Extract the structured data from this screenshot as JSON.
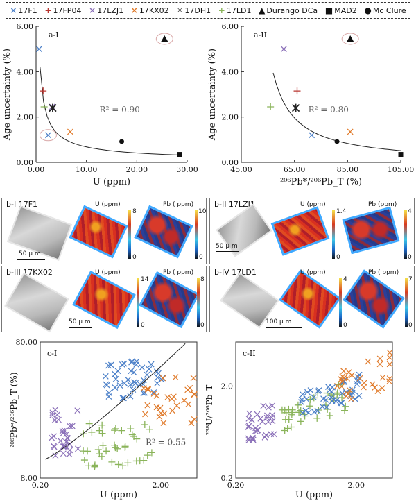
{
  "legend": [
    {
      "marker": "×",
      "label": "17F1",
      "color": "#4a7fc8"
    },
    {
      "marker": "+",
      "label": "17FP04",
      "color": "#b8352f"
    },
    {
      "marker": "×",
      "label": "17LZJ1",
      "color": "#8a6fb8"
    },
    {
      "marker": "×",
      "label": "17KX02",
      "color": "#e07a2a"
    },
    {
      "marker": "✳",
      "label": "17DH1",
      "color": "#222222"
    },
    {
      "marker": "+",
      "label": "17LD1",
      "color": "#8ab45a"
    },
    {
      "marker": "▲",
      "label": "Durango DCa",
      "color": "#111111"
    },
    {
      "marker": "■",
      "label": "MAD2",
      "color": "#111111"
    },
    {
      "marker": "●",
      "label": "Mc Clure",
      "color": "#111111"
    }
  ],
  "panels_b": [
    {
      "label": "b-I   17F1",
      "scale": "50 μ m",
      "u_max": "8",
      "u_min": "0",
      "pb_max": "10",
      "pb_min": "0",
      "u_title": "U (ppm)",
      "pb_title": "Pb ( ppm)"
    },
    {
      "label": "b-II   17LZJ1",
      "scale": "50 μ m",
      "u_max": "1.4",
      "u_min": "0",
      "pb_max": "4",
      "pb_min": "0",
      "u_title": "U (ppm)",
      "pb_title": "Pb (ppm)"
    },
    {
      "label": "b-III   17KX02",
      "scale": "50 μ m",
      "u_max": "14",
      "u_min": "0",
      "pb_max": "8",
      "pb_min": "0",
      "u_title": "U (ppm)",
      "pb_title": "Pb ( ppm)"
    },
    {
      "label": "b-IV   17LD1",
      "scale": "100 μ m",
      "u_max": "4",
      "u_min": "0",
      "pb_max": "7",
      "pb_min": "0",
      "u_title": "U (ppm)",
      "pb_title": "Pb ( ppm)"
    }
  ],
  "chart_data": [
    {
      "type": "scatter",
      "panel": "a-I",
      "xlabel": "U (ppm)",
      "ylabel": "Age uncertainty (%)",
      "xlim": [
        0,
        30
      ],
      "ylim": [
        0,
        6
      ],
      "xticks": [
        "0.00",
        "10.00",
        "20.00",
        "30.00"
      ],
      "yticks": [
        "0.00",
        "2.00",
        "4.00",
        "6.00"
      ],
      "annotation": "R² = 0.90",
      "points": [
        {
          "s": "17F1",
          "x": 0.6,
          "y": 5.0
        },
        {
          "s": "17F1",
          "x": 2.4,
          "y": 1.2
        },
        {
          "s": "17FP04",
          "x": 1.4,
          "y": 3.15
        },
        {
          "s": "17LD1",
          "x": 1.6,
          "y": 2.45
        },
        {
          "s": "17LZJ1",
          "x": 3.2,
          "y": 2.45
        },
        {
          "s": "17DH1",
          "x": 3.3,
          "y": 2.4
        },
        {
          "s": "17KX02",
          "x": 6.8,
          "y": 1.35
        },
        {
          "s": "Mc Clure",
          "x": 17,
          "y": 0.92
        },
        {
          "s": "MAD2",
          "x": 28.5,
          "y": 0.35
        },
        {
          "s": "Durango DCa",
          "x": 25.5,
          "y": 5.45
        }
      ]
    },
    {
      "type": "scatter",
      "panel": "a-II",
      "xlabel": "²⁰⁶Pb*/²⁰⁶Pb_T (%)",
      "ylabel": "Age uncertainty (%)",
      "xlim": [
        45,
        105
      ],
      "ylim": [
        0,
        6
      ],
      "xticks": [
        "45.00",
        "65.00",
        "85.00",
        "105.00"
      ],
      "yticks": [
        "0.00",
        "2.00",
        "4.00",
        "6.00"
      ],
      "annotation": "R² = 0.80",
      "points": [
        {
          "s": "17LZJ1",
          "x": 61,
          "y": 5.0
        },
        {
          "s": "17FP04",
          "x": 66,
          "y": 3.15
        },
        {
          "s": "17LD1",
          "x": 56,
          "y": 2.45
        },
        {
          "s": "17DH1",
          "x": 65.5,
          "y": 2.4
        },
        {
          "s": "17F1",
          "x": 71.5,
          "y": 1.2
        },
        {
          "s": "17KX02",
          "x": 86,
          "y": 1.35
        },
        {
          "s": "Mc Clure",
          "x": 81,
          "y": 0.92
        },
        {
          "s": "MAD2",
          "x": 105,
          "y": 0.35
        },
        {
          "s": "Durango DCa",
          "x": 86,
          "y": 5.45
        }
      ]
    },
    {
      "type": "scatter",
      "panel": "c-I",
      "log": true,
      "xlabel": "U (ppm)",
      "ylabel": "²⁰⁶Pb*/²⁰⁶Pb_T (%)",
      "xlim": [
        0.2,
        4
      ],
      "ylim": [
        8,
        80
      ],
      "xticks": [
        "0.20",
        "2.00"
      ],
      "yticks": [
        "8.00",
        "80.00"
      ],
      "annotation": "R² = 0.55"
    },
    {
      "type": "scatter",
      "panel": "c-II",
      "log": true,
      "xlabel": "U (ppm)",
      "ylabel": "²³⁸U/²⁰⁶Pb_T",
      "xlim": [
        0.2,
        4
      ],
      "ylim": [
        0.2,
        6
      ],
      "xticks": [
        "0.20",
        "2.00"
      ],
      "yticks": [
        "0.2",
        "2.0"
      ]
    }
  ]
}
